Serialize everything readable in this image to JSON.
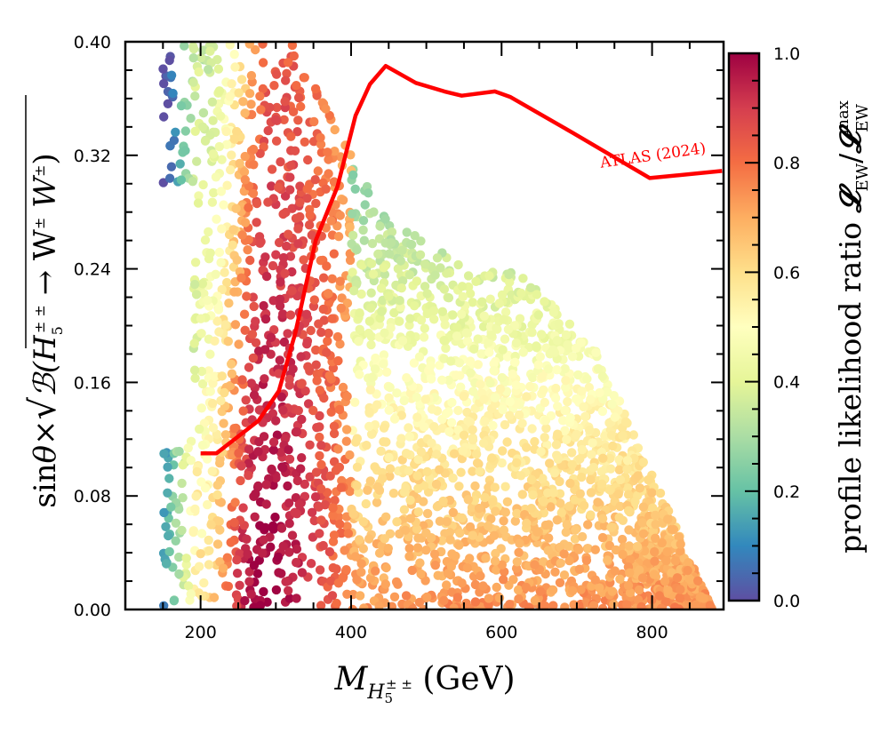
{
  "chart_data": {
    "type": "scatter",
    "title": "",
    "xlabel": "M_{H5±±} (GeV)",
    "xlabel_parts": {
      "main": "M",
      "sub": "H",
      "subsub": "5",
      "sup": "± ±",
      "unit": " (GeV)"
    },
    "ylabel": "sinθ × √B(H5±± → W±W±)",
    "ylabel_parts": {
      "prefix": "sin",
      "theta": "θ",
      "times": "×",
      "B": "ℬ(H",
      "sub5": "5",
      "sup": "± ±",
      "arrow": " → W",
      "w1sup": "±",
      "w2": " W",
      "w2sup": "±",
      "close": ")"
    },
    "xlim": [
      100,
      895
    ],
    "ylim": [
      0.0,
      0.4
    ],
    "xticks": [
      200,
      400,
      600,
      800
    ],
    "xtick_labels": [
      "200",
      "400",
      "600",
      "800"
    ],
    "yticks": [
      0.0,
      0.08,
      0.16,
      0.24,
      0.32,
      0.4
    ],
    "ytick_labels": [
      "0.00",
      "0.08",
      "0.16",
      "0.24",
      "0.32",
      "0.40"
    ],
    "grid": false,
    "colorbar": {
      "label": "profile likelihood ratio 𝓛EW/𝓛EW^max",
      "label_parts": {
        "text": "profile likelihood ratio ",
        "L1": "𝓛",
        "sub1": "EW",
        "slash": "/",
        "L2": "𝓛",
        "sub2": "EW",
        "sup2": "max"
      },
      "range": [
        0.0,
        1.0
      ],
      "ticks": [
        0.0,
        0.2,
        0.4,
        0.6,
        0.8,
        1.0
      ],
      "tick_labels": [
        "0.0",
        "0.2",
        "0.4",
        "0.6",
        "0.8",
        "1.0"
      ],
      "colormap": "Spectral_r",
      "colormap_stops": [
        "#5e4fa2",
        "#3288bd",
        "#66c2a5",
        "#abdda4",
        "#e6f598",
        "#ffffbf",
        "#fee08b",
        "#fdae61",
        "#f46d43",
        "#d53e4f",
        "#9e0142"
      ]
    },
    "scatter_regions": [
      {
        "name": "left-blue-edge",
        "x_range": [
          155,
          185
        ],
        "y_range": [
          0.3,
          0.4
        ],
        "likelihood": 0.05
      },
      {
        "name": "left-band-low",
        "x_range": [
          160,
          190
        ],
        "y_range": [
          0.0,
          0.12
        ],
        "likelihood": 0.25
      },
      {
        "name": "peak-band",
        "x_range": [
          230,
          330
        ],
        "y_range": [
          0.0,
          0.38
        ],
        "likelihood": 0.95
      },
      {
        "name": "bulk",
        "x_range": [
          300,
          880
        ],
        "y_range": [
          0.0,
          0.3
        ],
        "likelihood": 0.6
      }
    ],
    "series": [
      {
        "name": "ATLAS (2024)",
        "type": "line",
        "color": "#ff0000",
        "label": "ATLAS (2024)",
        "x": [
          200,
          221,
          277,
          304,
          326,
          353,
          382,
          406,
          425,
          446,
          486,
          524,
          547,
          591,
          612,
          694,
          797,
          893
        ],
        "y": [
          0.11,
          0.11,
          0.133,
          0.154,
          0.195,
          0.26,
          0.298,
          0.348,
          0.37,
          0.383,
          0.371,
          0.365,
          0.362,
          0.365,
          0.361,
          0.336,
          0.304,
          0.309
        ]
      }
    ],
    "annotations": [
      {
        "text": "ATLAS (2024)",
        "x": 815,
        "y": 0.31,
        "color": "#ff0000",
        "rotation": "slight-upward"
      }
    ]
  }
}
